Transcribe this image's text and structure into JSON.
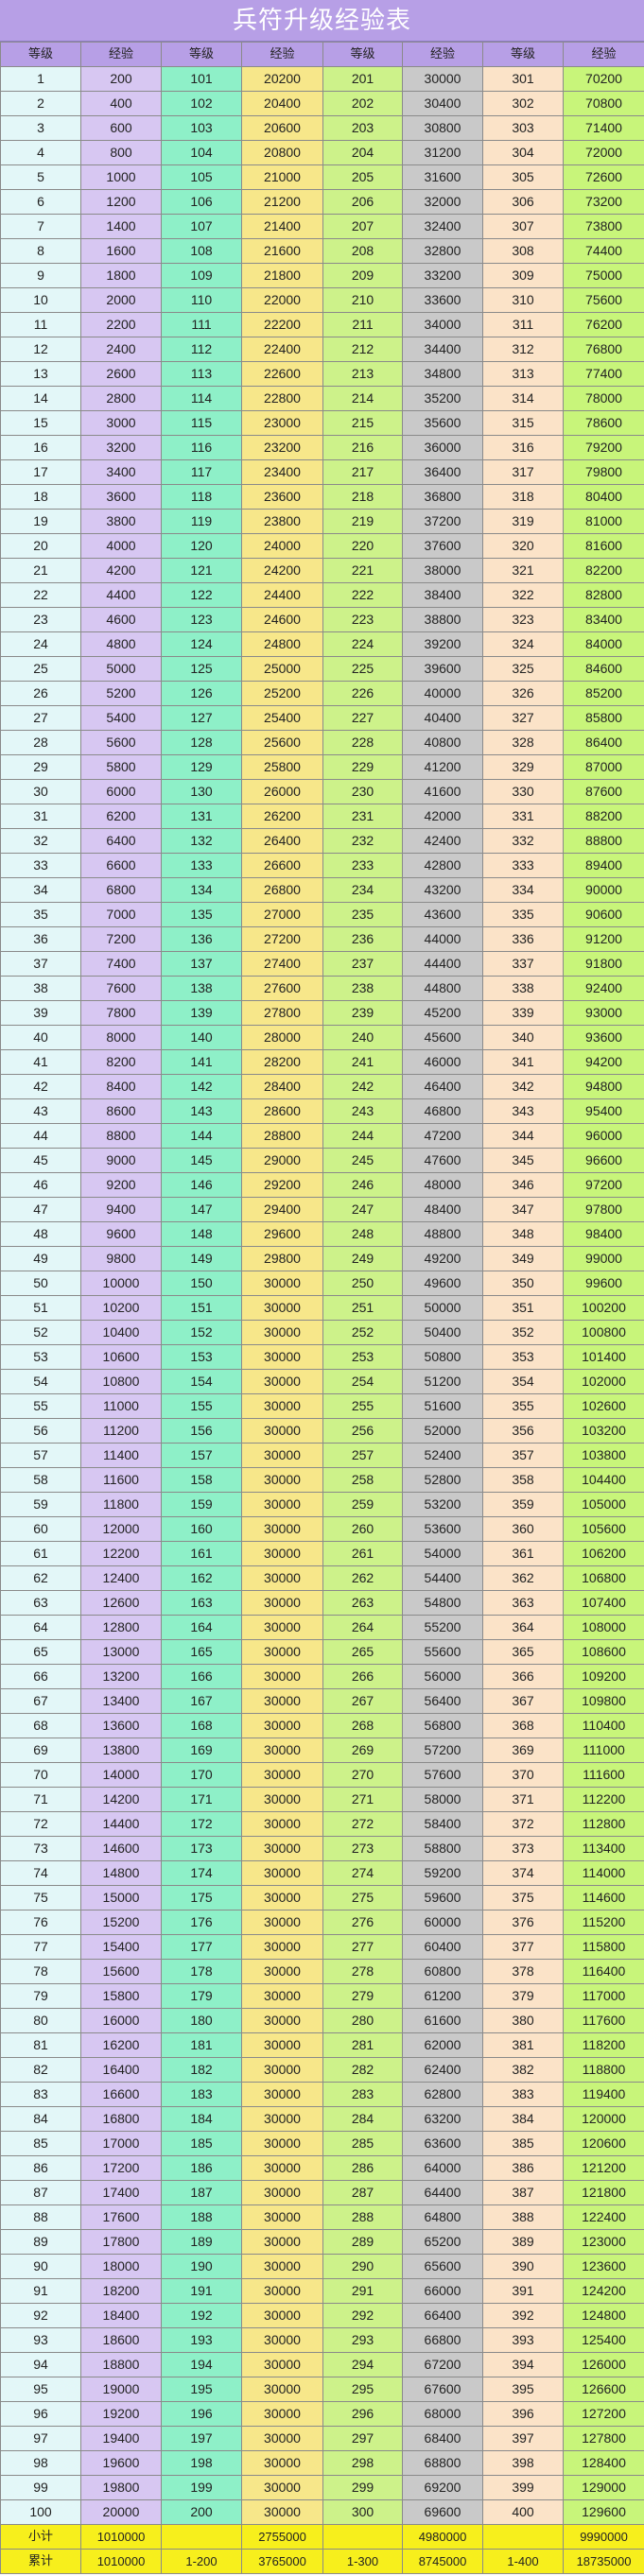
{
  "title": "兵符升级经验表",
  "headers": [
    "等级",
    "经验",
    "等级",
    "经验",
    "等级",
    "经验",
    "等级",
    "经验"
  ],
  "rows": [
    [
      1,
      200,
      101,
      20200,
      201,
      30000,
      301,
      70200
    ],
    [
      2,
      400,
      102,
      20400,
      202,
      30400,
      302,
      70800
    ],
    [
      3,
      600,
      103,
      20600,
      203,
      30800,
      303,
      71400
    ],
    [
      4,
      800,
      104,
      20800,
      204,
      31200,
      304,
      72000
    ],
    [
      5,
      1000,
      105,
      21000,
      205,
      31600,
      305,
      72600
    ],
    [
      6,
      1200,
      106,
      21200,
      206,
      32000,
      306,
      73200
    ],
    [
      7,
      1400,
      107,
      21400,
      207,
      32400,
      307,
      73800
    ],
    [
      8,
      1600,
      108,
      21600,
      208,
      32800,
      308,
      74400
    ],
    [
      9,
      1800,
      109,
      21800,
      209,
      33200,
      309,
      75000
    ],
    [
      10,
      2000,
      110,
      22000,
      210,
      33600,
      310,
      75600
    ],
    [
      11,
      2200,
      111,
      22200,
      211,
      34000,
      311,
      76200
    ],
    [
      12,
      2400,
      112,
      22400,
      212,
      34400,
      312,
      76800
    ],
    [
      13,
      2600,
      113,
      22600,
      213,
      34800,
      313,
      77400
    ],
    [
      14,
      2800,
      114,
      22800,
      214,
      35200,
      314,
      78000
    ],
    [
      15,
      3000,
      115,
      23000,
      215,
      35600,
      315,
      78600
    ],
    [
      16,
      3200,
      116,
      23200,
      216,
      36000,
      316,
      79200
    ],
    [
      17,
      3400,
      117,
      23400,
      217,
      36400,
      317,
      79800
    ],
    [
      18,
      3600,
      118,
      23600,
      218,
      36800,
      318,
      80400
    ],
    [
      19,
      3800,
      119,
      23800,
      219,
      37200,
      319,
      81000
    ],
    [
      20,
      4000,
      120,
      24000,
      220,
      37600,
      320,
      81600
    ],
    [
      21,
      4200,
      121,
      24200,
      221,
      38000,
      321,
      82200
    ],
    [
      22,
      4400,
      122,
      24400,
      222,
      38400,
      322,
      82800
    ],
    [
      23,
      4600,
      123,
      24600,
      223,
      38800,
      323,
      83400
    ],
    [
      24,
      4800,
      124,
      24800,
      224,
      39200,
      324,
      84000
    ],
    [
      25,
      5000,
      125,
      25000,
      225,
      39600,
      325,
      84600
    ],
    [
      26,
      5200,
      126,
      25200,
      226,
      40000,
      326,
      85200
    ],
    [
      27,
      5400,
      127,
      25400,
      227,
      40400,
      327,
      85800
    ],
    [
      28,
      5600,
      128,
      25600,
      228,
      40800,
      328,
      86400
    ],
    [
      29,
      5800,
      129,
      25800,
      229,
      41200,
      329,
      87000
    ],
    [
      30,
      6000,
      130,
      26000,
      230,
      41600,
      330,
      87600
    ],
    [
      31,
      6200,
      131,
      26200,
      231,
      42000,
      331,
      88200
    ],
    [
      32,
      6400,
      132,
      26400,
      232,
      42400,
      332,
      88800
    ],
    [
      33,
      6600,
      133,
      26600,
      233,
      42800,
      333,
      89400
    ],
    [
      34,
      6800,
      134,
      26800,
      234,
      43200,
      334,
      90000
    ],
    [
      35,
      7000,
      135,
      27000,
      235,
      43600,
      335,
      90600
    ],
    [
      36,
      7200,
      136,
      27200,
      236,
      44000,
      336,
      91200
    ],
    [
      37,
      7400,
      137,
      27400,
      237,
      44400,
      337,
      91800
    ],
    [
      38,
      7600,
      138,
      27600,
      238,
      44800,
      338,
      92400
    ],
    [
      39,
      7800,
      139,
      27800,
      239,
      45200,
      339,
      93000
    ],
    [
      40,
      8000,
      140,
      28000,
      240,
      45600,
      340,
      93600
    ],
    [
      41,
      8200,
      141,
      28200,
      241,
      46000,
      341,
      94200
    ],
    [
      42,
      8400,
      142,
      28400,
      242,
      46400,
      342,
      94800
    ],
    [
      43,
      8600,
      143,
      28600,
      243,
      46800,
      343,
      95400
    ],
    [
      44,
      8800,
      144,
      28800,
      244,
      47200,
      344,
      96000
    ],
    [
      45,
      9000,
      145,
      29000,
      245,
      47600,
      345,
      96600
    ],
    [
      46,
      9200,
      146,
      29200,
      246,
      48000,
      346,
      97200
    ],
    [
      47,
      9400,
      147,
      29400,
      247,
      48400,
      347,
      97800
    ],
    [
      48,
      9600,
      148,
      29600,
      248,
      48800,
      348,
      98400
    ],
    [
      49,
      9800,
      149,
      29800,
      249,
      49200,
      349,
      99000
    ],
    [
      50,
      10000,
      150,
      30000,
      250,
      49600,
      350,
      99600
    ],
    [
      51,
      10200,
      151,
      30000,
      251,
      50000,
      351,
      100200
    ],
    [
      52,
      10400,
      152,
      30000,
      252,
      50400,
      352,
      100800
    ],
    [
      53,
      10600,
      153,
      30000,
      253,
      50800,
      353,
      101400
    ],
    [
      54,
      10800,
      154,
      30000,
      254,
      51200,
      354,
      102000
    ],
    [
      55,
      11000,
      155,
      30000,
      255,
      51600,
      355,
      102600
    ],
    [
      56,
      11200,
      156,
      30000,
      256,
      52000,
      356,
      103200
    ],
    [
      57,
      11400,
      157,
      30000,
      257,
      52400,
      357,
      103800
    ],
    [
      58,
      11600,
      158,
      30000,
      258,
      52800,
      358,
      104400
    ],
    [
      59,
      11800,
      159,
      30000,
      259,
      53200,
      359,
      105000
    ],
    [
      60,
      12000,
      160,
      30000,
      260,
      53600,
      360,
      105600
    ],
    [
      61,
      12200,
      161,
      30000,
      261,
      54000,
      361,
      106200
    ],
    [
      62,
      12400,
      162,
      30000,
      262,
      54400,
      362,
      106800
    ],
    [
      63,
      12600,
      163,
      30000,
      263,
      54800,
      363,
      107400
    ],
    [
      64,
      12800,
      164,
      30000,
      264,
      55200,
      364,
      108000
    ],
    [
      65,
      13000,
      165,
      30000,
      265,
      55600,
      365,
      108600
    ],
    [
      66,
      13200,
      166,
      30000,
      266,
      56000,
      366,
      109200
    ],
    [
      67,
      13400,
      167,
      30000,
      267,
      56400,
      367,
      109800
    ],
    [
      68,
      13600,
      168,
      30000,
      268,
      56800,
      368,
      110400
    ],
    [
      69,
      13800,
      169,
      30000,
      269,
      57200,
      369,
      111000
    ],
    [
      70,
      14000,
      170,
      30000,
      270,
      57600,
      370,
      111600
    ],
    [
      71,
      14200,
      171,
      30000,
      271,
      58000,
      371,
      112200
    ],
    [
      72,
      14400,
      172,
      30000,
      272,
      58400,
      372,
      112800
    ],
    [
      73,
      14600,
      173,
      30000,
      273,
      58800,
      373,
      113400
    ],
    [
      74,
      14800,
      174,
      30000,
      274,
      59200,
      374,
      114000
    ],
    [
      75,
      15000,
      175,
      30000,
      275,
      59600,
      375,
      114600
    ],
    [
      76,
      15200,
      176,
      30000,
      276,
      60000,
      376,
      115200
    ],
    [
      77,
      15400,
      177,
      30000,
      277,
      60400,
      377,
      115800
    ],
    [
      78,
      15600,
      178,
      30000,
      278,
      60800,
      378,
      116400
    ],
    [
      79,
      15800,
      179,
      30000,
      279,
      61200,
      379,
      117000
    ],
    [
      80,
      16000,
      180,
      30000,
      280,
      61600,
      380,
      117600
    ],
    [
      81,
      16200,
      181,
      30000,
      281,
      62000,
      381,
      118200
    ],
    [
      82,
      16400,
      182,
      30000,
      282,
      62400,
      382,
      118800
    ],
    [
      83,
      16600,
      183,
      30000,
      283,
      62800,
      383,
      119400
    ],
    [
      84,
      16800,
      184,
      30000,
      284,
      63200,
      384,
      120000
    ],
    [
      85,
      17000,
      185,
      30000,
      285,
      63600,
      385,
      120600
    ],
    [
      86,
      17200,
      186,
      30000,
      286,
      64000,
      386,
      121200
    ],
    [
      87,
      17400,
      187,
      30000,
      287,
      64400,
      387,
      121800
    ],
    [
      88,
      17600,
      188,
      30000,
      288,
      64800,
      388,
      122400
    ],
    [
      89,
      17800,
      189,
      30000,
      289,
      65200,
      389,
      123000
    ],
    [
      90,
      18000,
      190,
      30000,
      290,
      65600,
      390,
      123600
    ],
    [
      91,
      18200,
      191,
      30000,
      291,
      66000,
      391,
      124200
    ],
    [
      92,
      18400,
      192,
      30000,
      292,
      66400,
      392,
      124800
    ],
    [
      93,
      18600,
      193,
      30000,
      293,
      66800,
      393,
      125400
    ],
    [
      94,
      18800,
      194,
      30000,
      294,
      67200,
      394,
      126000
    ],
    [
      95,
      19000,
      195,
      30000,
      295,
      67600,
      395,
      126600
    ],
    [
      96,
      19200,
      196,
      30000,
      296,
      68000,
      396,
      127200
    ],
    [
      97,
      19400,
      197,
      30000,
      297,
      68400,
      397,
      127800
    ],
    [
      98,
      19600,
      198,
      30000,
      298,
      68800,
      398,
      128400
    ],
    [
      99,
      19800,
      199,
      30000,
      299,
      69200,
      399,
      129000
    ],
    [
      100,
      20000,
      200,
      30000,
      300,
      69600,
      400,
      129600
    ]
  ],
  "subtotal": [
    "小计",
    "1010000",
    "",
    "2755000",
    "",
    "4980000",
    "",
    "9990000"
  ],
  "cumulative": [
    "累计",
    "1010000",
    "1-200",
    "3765000",
    "1-300",
    "8745000",
    "1-400",
    "18735000"
  ],
  "column_colors": [
    "#e3f7f8",
    "#d7c7f2",
    "#8ef0c8",
    "#f7e78a",
    "#cdf28a",
    "#c9c9c9",
    "#fbe3c8",
    "#c8f57a"
  ],
  "header_color": "#b79fe6",
  "summary_color": "#f7ef1c"
}
